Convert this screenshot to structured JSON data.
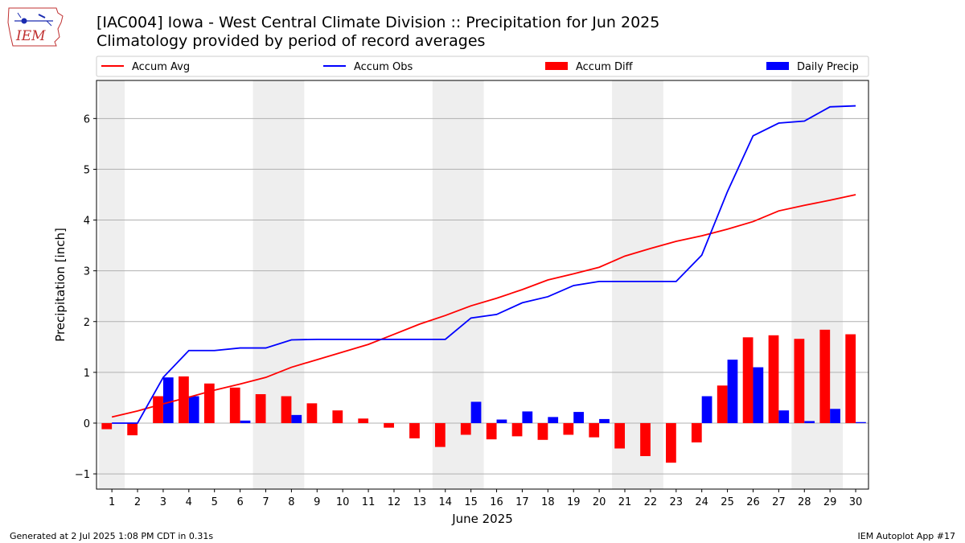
{
  "header": {
    "title": "[IAC004] Iowa - West Central Climate Division :: Precipitation for Jun 2025",
    "subtitle": "Climatology provided by period of record averages"
  },
  "logo": {
    "text": "IEM",
    "icon": "iowa-state-outline-icon"
  },
  "footer": {
    "generated": "Generated at 2 Jul 2025 1:08 PM CDT in 0.31s",
    "app": "IEM Autoplot App #17"
  },
  "chart_data": {
    "type": "bar",
    "xlabel": "June 2025",
    "ylabel": "Precipitation [inch]",
    "ylim": [
      -1.3,
      6.75
    ],
    "yticks": [
      -1,
      0,
      1,
      2,
      3,
      4,
      5,
      6
    ],
    "grid": "horizontal",
    "legend_position": "top",
    "weekend_shading": [
      [
        1,
        1
      ],
      [
        7,
        8
      ],
      [
        14,
        15
      ],
      [
        21,
        22
      ],
      [
        28,
        29
      ]
    ],
    "categories": [
      "1",
      "2",
      "3",
      "4",
      "5",
      "6",
      "7",
      "8",
      "9",
      "10",
      "11",
      "12",
      "13",
      "14",
      "15",
      "16",
      "17",
      "18",
      "19",
      "20",
      "21",
      "22",
      "23",
      "24",
      "25",
      "26",
      "27",
      "28",
      "29",
      "30"
    ],
    "series": [
      {
        "name": "Accum Avg",
        "kind": "line",
        "color": "#ff0000",
        "values": [
          0.12,
          0.24,
          0.38,
          0.51,
          0.65,
          0.77,
          0.9,
          1.1,
          1.25,
          1.4,
          1.55,
          1.75,
          1.95,
          2.12,
          2.31,
          2.46,
          2.63,
          2.82,
          2.94,
          3.07,
          3.29,
          3.44,
          3.58,
          3.69,
          3.82,
          3.97,
          4.18,
          4.29,
          4.39,
          4.5
        ]
      },
      {
        "name": "Accum Obs",
        "kind": "line",
        "color": "#0000ff",
        "values": [
          0.0,
          0.0,
          0.9,
          1.43,
          1.43,
          1.48,
          1.48,
          1.64,
          1.65,
          1.65,
          1.65,
          1.65,
          1.65,
          1.65,
          2.07,
          2.14,
          2.37,
          2.49,
          2.71,
          2.79,
          2.79,
          2.79,
          2.79,
          3.31,
          4.56,
          5.66,
          5.91,
          5.95,
          6.23,
          6.25
        ]
      },
      {
        "name": "Accum Diff",
        "kind": "bar",
        "color": "#ff0000",
        "values": [
          -0.12,
          -0.24,
          0.53,
          0.92,
          0.78,
          0.7,
          0.57,
          0.53,
          0.39,
          0.25,
          0.09,
          -0.09,
          -0.3,
          -0.47,
          -0.23,
          -0.32,
          -0.26,
          -0.33,
          -0.23,
          -0.28,
          -0.5,
          -0.65,
          -0.78,
          -0.38,
          0.74,
          1.69,
          1.73,
          1.66,
          1.84,
          1.75
        ]
      },
      {
        "name": "Daily Precip",
        "kind": "bar",
        "color": "#0000ff",
        "values": [
          0.0,
          0.0,
          0.9,
          0.53,
          0.0,
          0.05,
          0.0,
          0.16,
          0.0,
          0.0,
          0.0,
          0.0,
          0.0,
          0.0,
          0.42,
          0.07,
          0.23,
          0.12,
          0.22,
          0.08,
          0.0,
          0.0,
          0.0,
          0.53,
          1.25,
          1.1,
          0.25,
          0.04,
          0.28,
          0.02
        ]
      }
    ]
  }
}
